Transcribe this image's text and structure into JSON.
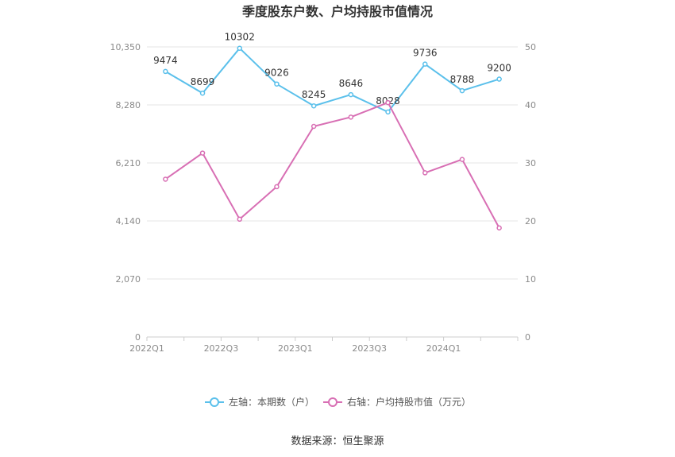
{
  "chart_data": {
    "type": "line",
    "title": "季度股东户数、户均持股市值情况",
    "source": "数据来源：恒生聚源",
    "x": [
      "2022Q1",
      "2022Q2",
      "2022Q3",
      "2022Q4",
      "2023Q1",
      "2023Q2",
      "2023Q3",
      "2023Q4",
      "2024Q1",
      "2024Q2"
    ],
    "x_tick_labels": [
      "2022Q1",
      "2022Q3",
      "2023Q1",
      "2023Q3",
      "2024Q1"
    ],
    "left_axis": {
      "ylim": [
        0,
        10350
      ],
      "ticks": [
        "0",
        "2,070",
        "4,140",
        "6,210",
        "8,280",
        "10,350"
      ]
    },
    "right_axis": {
      "ylim": [
        0,
        50
      ],
      "ticks": [
        "0",
        "10",
        "20",
        "30",
        "40",
        "50"
      ]
    },
    "series": [
      {
        "name": "左轴：本期数（户）",
        "axis": "left",
        "color": "#5bc0eb",
        "values": [
          9474,
          8699,
          10302,
          9026,
          8245,
          8646,
          8028,
          9736,
          8788,
          9200
        ],
        "labels": [
          "9474",
          "8699",
          "10302",
          "9026",
          "8245",
          "8646",
          "8028",
          "9736",
          "8788",
          "9200"
        ]
      },
      {
        "name": "右轴：户均持股市值（万元）",
        "axis": "right",
        "color": "#d86fb4",
        "values": [
          27.2,
          31.7,
          20.3,
          25.9,
          36.3,
          37.9,
          40.4,
          28.3,
          30.6,
          18.8
        ]
      }
    ],
    "grid": true,
    "legend_position": "bottom"
  }
}
